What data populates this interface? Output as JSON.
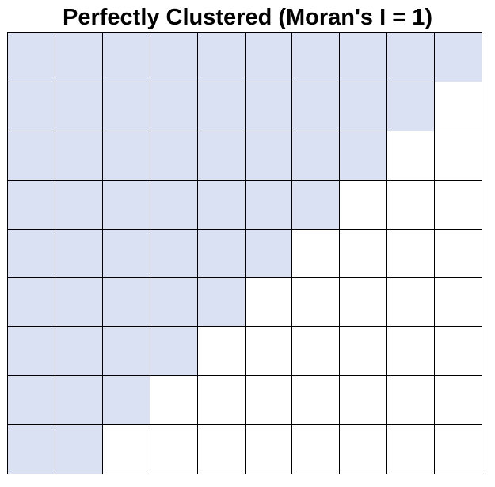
{
  "title": "Perfectly Clustered (Moran's I = 1)",
  "colors": {
    "filled": "#d9e1f2",
    "empty": "#ffffff",
    "border": "#000000"
  },
  "grid": {
    "rows": 9,
    "cols": 10,
    "filled_per_row": [
      10,
      9,
      8,
      7,
      6,
      5,
      4,
      3,
      2
    ]
  }
}
